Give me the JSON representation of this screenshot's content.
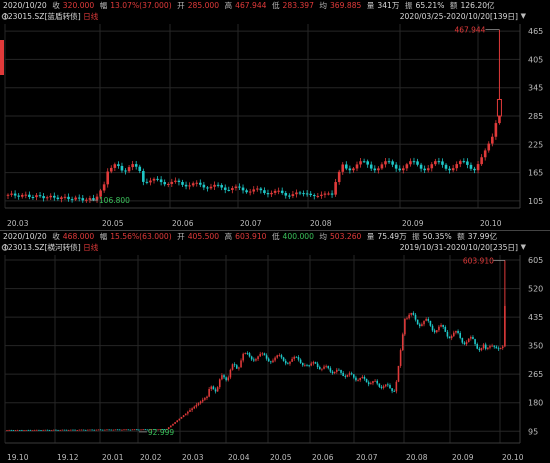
{
  "panel1": {
    "info": {
      "date": "2020/10/20",
      "close_label": "收",
      "close_value": "320.000",
      "change_label": "幅",
      "change_value": "13.07%(37.000)",
      "open_label": "开",
      "open_value": "285.000",
      "high_label": "高",
      "high_value": "467.944",
      "low_label": "低",
      "low_value": "283.397",
      "avg_label": "均",
      "avg_value": "369.885",
      "volume_label": "量",
      "volume_value": "341万",
      "amplitude_label": "振",
      "amplitude_value": "65.21%",
      "amount_label": "额",
      "amount_value": "126.20亿"
    },
    "code": "123015.SZ",
    "name": "[蓝盾转债]",
    "period": "日线",
    "range": "2020/03/25-2020/10/20[139日]",
    "high_marker": "467.944",
    "low_marker": "106.800",
    "y_ticks": [
      "465",
      "405",
      "345",
      "285",
      "225",
      "165",
      "105"
    ],
    "x_ticks": [
      "20.03",
      "20.05",
      "20.06",
      "20.07",
      "20.08",
      "20.09",
      "20.10"
    ]
  },
  "panel2": {
    "info": {
      "date": "2020/10/20",
      "close_label": "收",
      "close_value": "468.000",
      "change_label": "幅",
      "change_value": "15.56%(63.000)",
      "open_label": "开",
      "open_value": "405.500",
      "high_label": "高",
      "high_value": "603.910",
      "low_label": "低",
      "low_value": "400.000",
      "avg_label": "均",
      "avg_value": "503.260",
      "volume_label": "量",
      "volume_value": "75.49万",
      "amplitude_label": "振",
      "amplitude_value": "50.35%",
      "amount_label": "额",
      "amount_value": "37.99亿"
    },
    "code": "123013.SZ",
    "name": "[横河转债]",
    "period": "日线",
    "range": "2019/10/31-2020/10/20[235日]",
    "high_marker": "603.910",
    "low_marker": "92.999",
    "y_ticks": [
      "605",
      "520",
      "435",
      "350",
      "265",
      "180",
      "95"
    ],
    "x_ticks": [
      "19.10",
      "19.12",
      "20.01",
      "20.02",
      "20.03",
      "20.04",
      "20.05",
      "20.06",
      "20.07",
      "20.08",
      "20.09",
      "20.10"
    ]
  },
  "colors": {
    "up": "#e03a3a",
    "down": "#1ec8c8",
    "grid": "#2a2a2a",
    "axis_text": "#bdbdbd"
  },
  "icons": [
    "dropdown-triangle-icon",
    "settings-gear-icon"
  ]
}
